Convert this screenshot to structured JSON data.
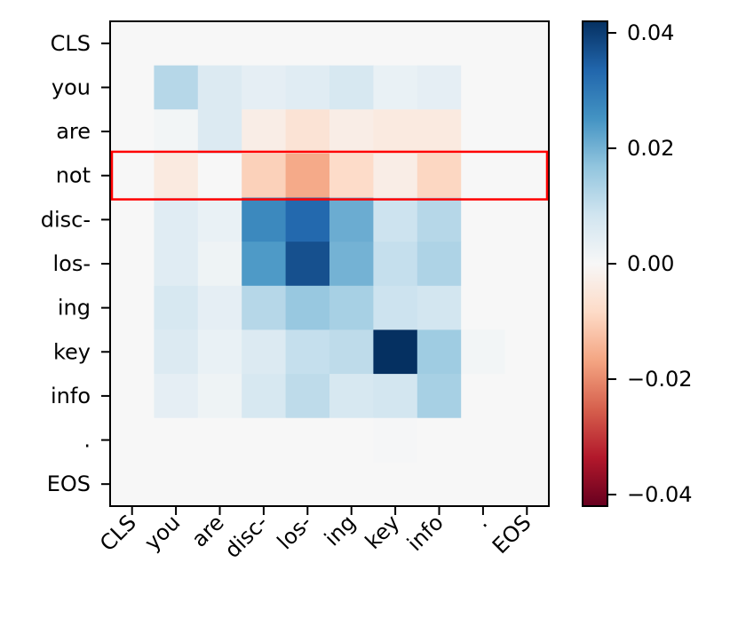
{
  "chart_data": {
    "type": "heatmap",
    "row_labels": [
      "CLS",
      "you",
      "are",
      "not",
      "disc-",
      "los-",
      "ing",
      "key",
      "info",
      ".",
      "EOS"
    ],
    "col_labels": [
      "CLS",
      "you",
      "are",
      "disc-",
      "los-",
      "ing",
      "key",
      "info",
      ".",
      "EOS"
    ],
    "values": [
      [
        0,
        0,
        0,
        0,
        0,
        0,
        0,
        0,
        0,
        0
      ],
      [
        0,
        0.012,
        0.006,
        0.004,
        0.005,
        0.007,
        0.003,
        0.004,
        0,
        0
      ],
      [
        0,
        0.001,
        0.006,
        -0.003,
        -0.006,
        -0.003,
        -0.004,
        -0.004,
        0,
        0
      ],
      [
        0,
        -0.004,
        0.0,
        -0.01,
        -0.016,
        -0.008,
        -0.003,
        -0.009,
        0,
        0
      ],
      [
        0,
        0.005,
        0.003,
        0.027,
        0.033,
        0.021,
        0.009,
        0.012,
        0,
        0
      ],
      [
        0,
        0.005,
        0.002,
        0.024,
        0.037,
        0.02,
        0.01,
        0.013,
        0,
        0
      ],
      [
        0,
        0.007,
        0.004,
        0.012,
        0.016,
        0.014,
        0.009,
        0.008,
        0,
        0
      ],
      [
        0,
        0.006,
        0.003,
        0.006,
        0.01,
        0.011,
        0.042,
        0.015,
        0.001,
        0
      ],
      [
        0,
        0.004,
        0.002,
        0.007,
        0.011,
        0.007,
        0.008,
        0.014,
        0,
        0
      ],
      [
        0,
        0,
        0,
        0,
        0,
        0,
        0.0005,
        0,
        0,
        0
      ],
      [
        0,
        0,
        0,
        0,
        0,
        0,
        0,
        0,
        0,
        0
      ]
    ],
    "colormap": "RdBu",
    "vmin": -0.042,
    "vmax": 0.042,
    "colorbar_ticks": [
      0.04,
      0.02,
      0.0,
      -0.02,
      -0.04
    ],
    "colorbar_tick_labels": [
      "0.04",
      "0.02",
      "0.00",
      "−0.02",
      "−0.04"
    ],
    "highlight_row": "not",
    "highlight_color": "#ff0000"
  }
}
